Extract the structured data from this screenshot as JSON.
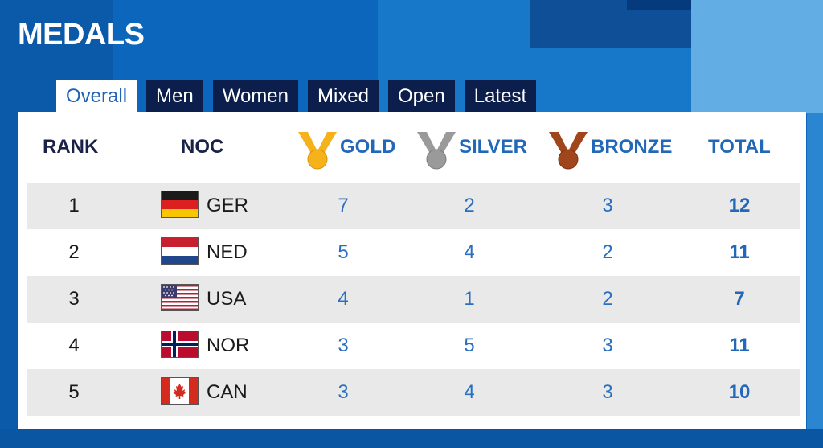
{
  "header": {
    "title": "MEDALS"
  },
  "tabs": [
    {
      "label": "Overall",
      "active": true
    },
    {
      "label": "Men",
      "active": false
    },
    {
      "label": "Women",
      "active": false
    },
    {
      "label": "Mixed",
      "active": false
    },
    {
      "label": "Open",
      "active": false
    },
    {
      "label": "Latest",
      "active": false
    }
  ],
  "table": {
    "columns": {
      "rank": "RANK",
      "noc": "NOC",
      "gold": "GOLD",
      "silver": "SILVER",
      "bronze": "BRONZE",
      "total": "TOTAL"
    },
    "medal_colors": {
      "gold": "#f5b21a",
      "silver": "#9a9a9a",
      "bronze": "#a0451c"
    },
    "rows": [
      {
        "rank": "1",
        "noc": "GER",
        "flag": "germany-flag-icon",
        "gold": "7",
        "silver": "2",
        "bronze": "3",
        "total": "12"
      },
      {
        "rank": "2",
        "noc": "NED",
        "flag": "netherlands-flag-icon",
        "gold": "5",
        "silver": "4",
        "bronze": "2",
        "total": "11"
      },
      {
        "rank": "3",
        "noc": "USA",
        "flag": "usa-flag-icon",
        "gold": "4",
        "silver": "1",
        "bronze": "2",
        "total": "7"
      },
      {
        "rank": "4",
        "noc": "NOR",
        "flag": "norway-flag-icon",
        "gold": "3",
        "silver": "5",
        "bronze": "3",
        "total": "11"
      },
      {
        "rank": "5",
        "noc": "CAN",
        "flag": "canada-flag-icon",
        "gold": "3",
        "silver": "4",
        "bronze": "3",
        "total": "10"
      }
    ]
  },
  "colors": {
    "accent": "#2368b8",
    "tab_bg": "#0c1e4c",
    "page_bg": "#0b66bc"
  }
}
